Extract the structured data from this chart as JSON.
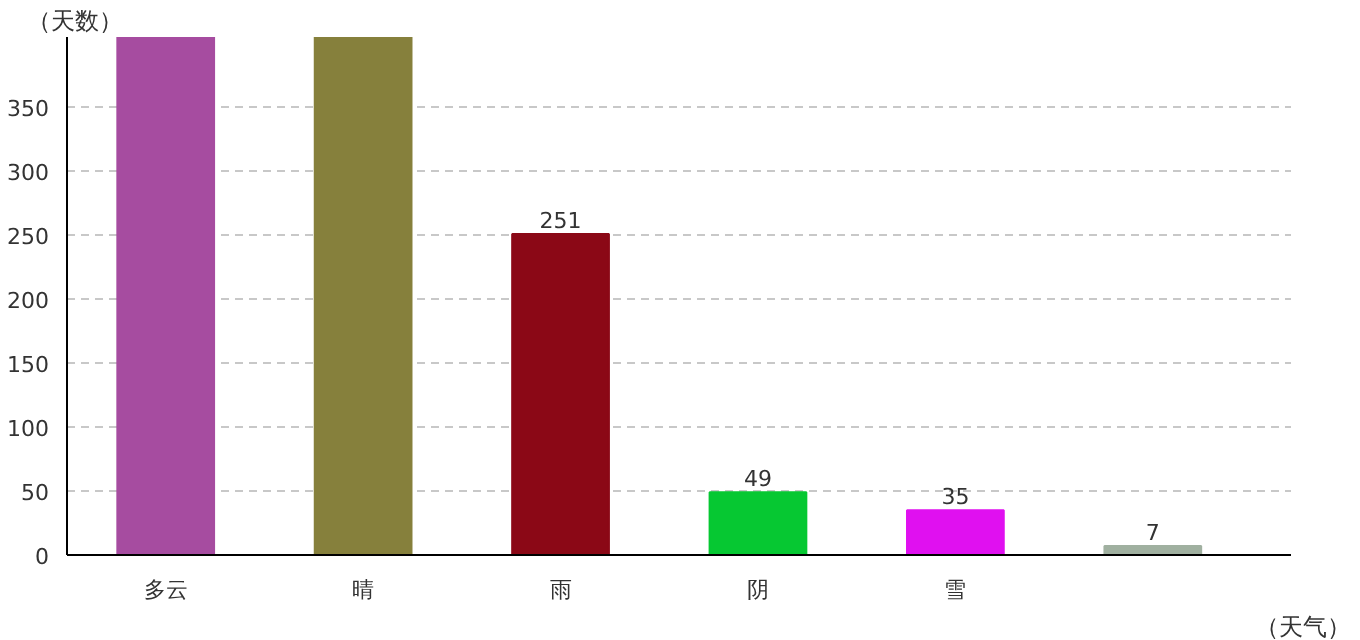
{
  "chart_data": {
    "type": "bar",
    "xlabel": "（天气）",
    "ylabel": "（天数）",
    "categories": [
      "多云",
      "晴",
      "雨",
      "阴",
      "雪",
      null
    ],
    "values": [
      405,
      405,
      251,
      49,
      35,
      7
    ],
    "colors": [
      "#a64ca0",
      "#86803c",
      "#8b0816",
      "#06c832",
      "#e010f0",
      "#a0b0a0"
    ],
    "value_labels": [
      null,
      null,
      "251",
      "49",
      "35",
      "7"
    ],
    "ylim": [
      0,
      405
    ],
    "yticks": [
      0,
      50,
      100,
      150,
      200,
      250,
      300,
      350
    ],
    "grid": "y"
  }
}
